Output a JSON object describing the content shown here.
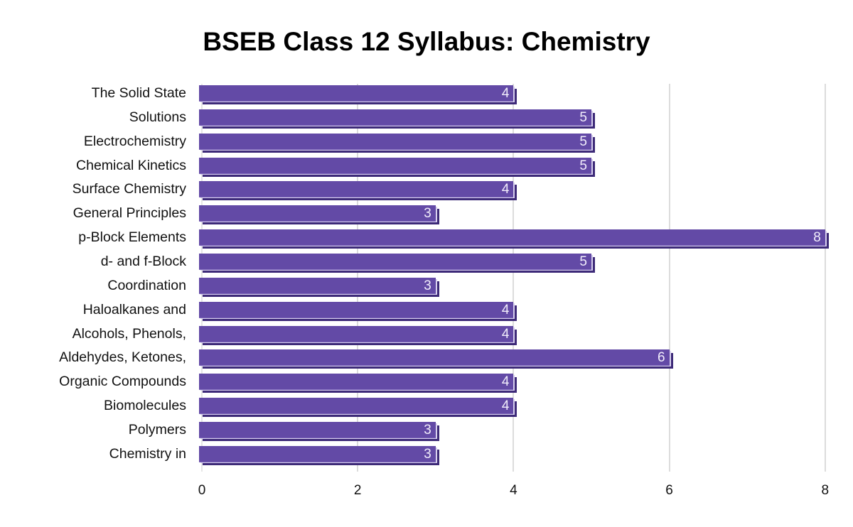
{
  "chart_data": {
    "type": "bar",
    "orientation": "horizontal",
    "title": "BSEB Class 12 Syllabus: Chemistry",
    "xlabel": "",
    "ylabel": "",
    "categories": [
      "The Solid State",
      "Solutions",
      "Electrochemistry",
      "Chemical Kinetics",
      "Surface Chemistry",
      "General Principles",
      "p-Block Elements",
      "d- and f-Block",
      "Coordination",
      "Haloalkanes and",
      "Alcohols, Phenols,",
      "Aldehydes, Ketones,",
      "Organic Compounds",
      "Biomolecules",
      "Polymers",
      "Chemistry in"
    ],
    "values": [
      4,
      5,
      5,
      5,
      4,
      3,
      8,
      5,
      3,
      4,
      4,
      6,
      4,
      4,
      3,
      3
    ],
    "data_labels": [
      "4",
      "5",
      "5",
      "5",
      "4",
      "3",
      "8",
      "5",
      "3",
      "4",
      "4",
      "6",
      "4",
      "4",
      "3",
      "3"
    ],
    "xlim": [
      0,
      8
    ],
    "x_ticks": [
      "0",
      "2",
      "4",
      "6",
      "8"
    ],
    "grid": "vertical",
    "legend": "none",
    "colors": {
      "bar": "#634aa6",
      "bar_shadow": "#3d2a78",
      "bar_edge": "#d8d0ee",
      "value_label": "#f2eefc",
      "gridline": "#dcdcdc"
    }
  }
}
